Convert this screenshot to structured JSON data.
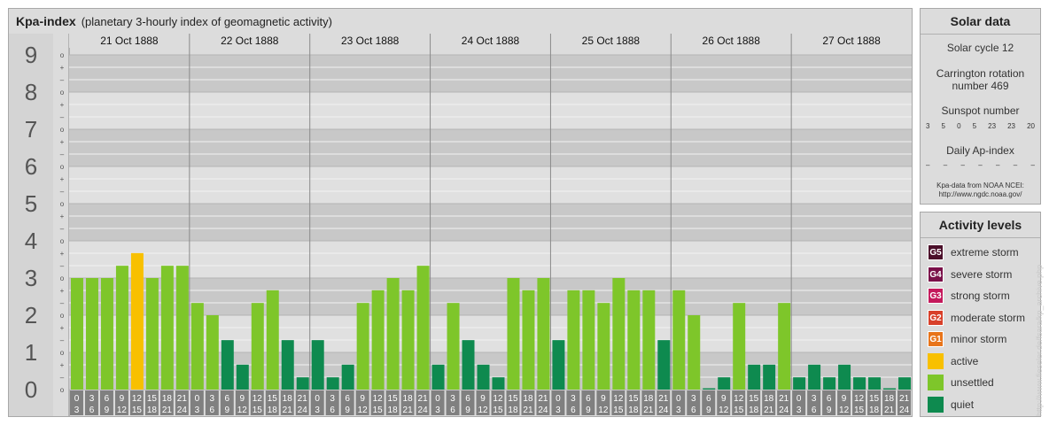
{
  "header": {
    "title": "Kpa-index",
    "subtitle": "(planetary 3-hourly index of geomagnetic activity)"
  },
  "chart_data": {
    "type": "bar",
    "title": "Kpa-index",
    "y_ticks": [
      "0",
      "1",
      "2",
      "3",
      "4",
      "5",
      "6",
      "7",
      "8",
      "9"
    ],
    "ylim": [
      0,
      9
    ],
    "minor_tick_marks": [
      "o",
      "–",
      "+"
    ],
    "days": [
      "21 Oct 1888",
      "22 Oct 1888",
      "23 Oct 1888",
      "24 Oct 1888",
      "25 Oct 1888",
      "26 Oct 1888",
      "27 Oct 1888"
    ],
    "interval_starts": [
      "0",
      "3",
      "6",
      "9",
      "12",
      "15",
      "18",
      "21"
    ],
    "interval_ends": [
      "3",
      "6",
      "9",
      "12",
      "15",
      "18",
      "21",
      "24"
    ],
    "values": [
      [
        3.0,
        3.0,
        3.0,
        3.33,
        3.67,
        3.0,
        3.33,
        3.33
      ],
      [
        2.33,
        2.0,
        1.33,
        0.67,
        2.33,
        2.67,
        1.33,
        0.33
      ],
      [
        1.33,
        0.33,
        0.67,
        2.33,
        2.67,
        3.0,
        2.67,
        3.33
      ],
      [
        0.67,
        2.33,
        1.33,
        0.67,
        0.33,
        3.0,
        2.67,
        3.0
      ],
      [
        1.33,
        2.67,
        2.67,
        2.33,
        3.0,
        2.67,
        2.67,
        1.33
      ],
      [
        2.67,
        2.0,
        0.0,
        0.33,
        2.33,
        0.67,
        0.67,
        2.33
      ],
      [
        0.33,
        0.67,
        0.33,
        0.67,
        0.33,
        0.33,
        0.0,
        0.33
      ]
    ],
    "level_colors": {
      "quiet": "#0e8a4f",
      "unsettled": "#7ec62a",
      "active": "#f8c000"
    }
  },
  "solar": {
    "title": "Solar data",
    "cycle": "Solar cycle 12",
    "carrington_line1": "Carrington rotation",
    "carrington_line2": "number 469",
    "sunspot_label": "Sunspot number",
    "sunspots": [
      "3",
      "5",
      "0",
      "5",
      "23",
      "23",
      "20"
    ],
    "ap_label": "Daily Ap-index",
    "ap_values": [
      "–",
      "–",
      "–",
      "–",
      "–",
      "–",
      "–"
    ],
    "source_line1": "Kpa-data from NOAA NCEI:",
    "source_line2": "http://www.ngdc.noaa.gov/"
  },
  "activity": {
    "title": "Activity levels",
    "items": [
      {
        "code": "G5",
        "label": "extreme storm",
        "color": "#4b0f2a"
      },
      {
        "code": "G4",
        "label": "severe storm",
        "color": "#7a1049"
      },
      {
        "code": "G3",
        "label": "strong storm",
        "color": "#c41a5c"
      },
      {
        "code": "G2",
        "label": "moderate storm",
        "color": "#d8402a"
      },
      {
        "code": "G1",
        "label": "minor storm",
        "color": "#e8741a"
      },
      {
        "code": "",
        "label": "active",
        "color": "#f8c000"
      },
      {
        "code": "",
        "label": "unsettled",
        "color": "#7ec62a"
      },
      {
        "code": "",
        "label": "quiet",
        "color": "#0e8a4f"
      }
    ]
  },
  "watermark": "http://www.fieseler.de/fsara/kp_archive.php"
}
